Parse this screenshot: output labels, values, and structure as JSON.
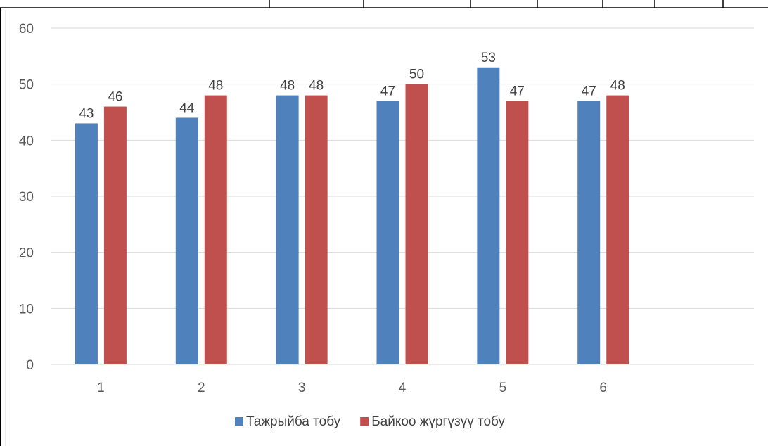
{
  "chart_data": {
    "type": "bar",
    "categories": [
      "1",
      "2",
      "3",
      "4",
      "5",
      "6",
      ""
    ],
    "series": [
      {
        "name": "Тажрыйба тобу",
        "values": [
          43,
          44,
          48,
          47,
          53,
          47,
          null
        ],
        "color": "#4f81bd"
      },
      {
        "name": "Байкоо жүргүзүү тобу",
        "values": [
          46,
          48,
          48,
          50,
          47,
          48,
          null
        ],
        "color": "#c0504d"
      }
    ],
    "ylim": [
      0,
      60
    ],
    "yticks": [
      0,
      10,
      20,
      30,
      40,
      50,
      60
    ],
    "grid": true,
    "legend_position": "bottom",
    "data_labels": true,
    "title": "",
    "xlabel": "",
    "ylabel": ""
  }
}
